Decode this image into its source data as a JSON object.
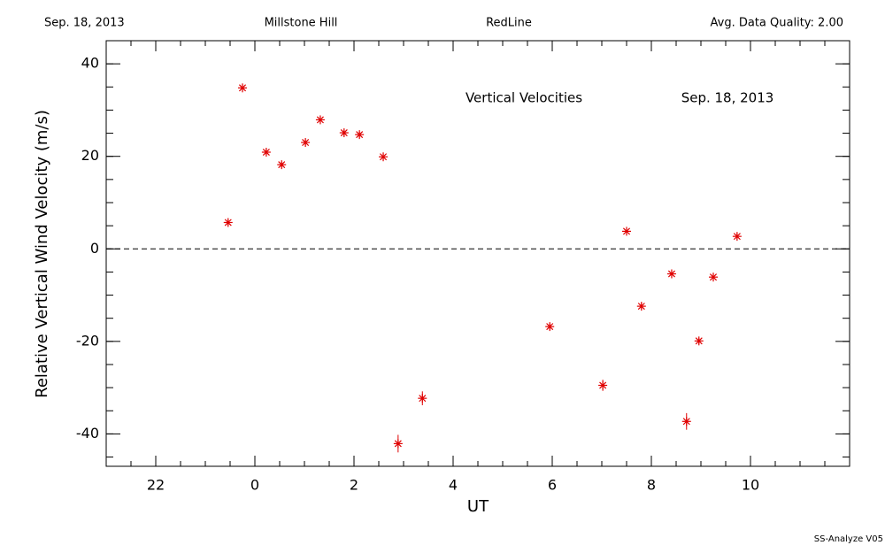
{
  "chart_data": {
    "type": "scatter",
    "header": [
      "Sep. 18, 2013",
      "Millstone Hill",
      "RedLine",
      "Avg. Data Quality: 2.00"
    ],
    "annotations": [
      "Vertical Velocities",
      "Sep. 18, 2013"
    ],
    "xlabel": "UT",
    "ylabel": "Relative Vertical Wind Velocity (m/s)",
    "footer": "SS-Analyze V05",
    "xlim": [
      -3,
      12
    ],
    "ylim": [
      -47,
      45
    ],
    "xticks": [
      {
        "value": -2,
        "label": "22"
      },
      0,
      2,
      4,
      6,
      8,
      10
    ],
    "yticks": [
      -40,
      -20,
      0,
      20,
      40
    ],
    "reference_line": 0,
    "color": "#e00000",
    "x": [
      -0.54,
      -0.25,
      0.23,
      0.54,
      1.02,
      1.32,
      1.8,
      2.11,
      2.59,
      2.89,
      3.38,
      5.95,
      7.02,
      7.5,
      7.8,
      8.41,
      8.71,
      8.96,
      9.25,
      9.73
    ],
    "values": [
      5.7,
      34.8,
      20.9,
      18.2,
      23.0,
      27.9,
      25.1,
      24.7,
      19.9,
      -42.1,
      -32.3,
      -16.8,
      -29.5,
      3.8,
      -12.4,
      -5.4,
      -37.3,
      -19.9,
      -6.1,
      2.7
    ],
    "errors": [
      0.6,
      0.6,
      0.6,
      0.6,
      0.6,
      0.6,
      0.6,
      0.6,
      0.6,
      1.9,
      1.5,
      0.6,
      1.2,
      0.6,
      0.6,
      0.6,
      1.8,
      0.6,
      0.6,
      0.6
    ]
  }
}
